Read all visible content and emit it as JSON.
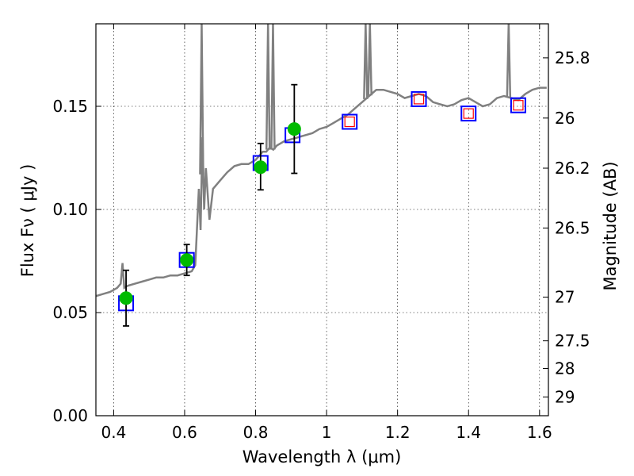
{
  "chart_data": {
    "type": "line",
    "title": "",
    "xlabel": "Wavelength  λ (μm)",
    "ylabel": "Flux  Fν  ( μJy )",
    "y2label": "Magnitude (AB)",
    "xlim": [
      0.35,
      1.625
    ],
    "ylim": [
      0,
      0.19
    ],
    "grid": true,
    "x_ticks": [
      0.4,
      0.6,
      0.8,
      1.0,
      1.2,
      1.4,
      1.6
    ],
    "x_tick_labels": [
      "0.4",
      "0.6",
      "0.8",
      "1",
      "1.2",
      "1.4",
      "1.6"
    ],
    "y_ticks": [
      0.0,
      0.05,
      0.1,
      0.15
    ],
    "y_tick_labels": [
      "0.00",
      "0.05",
      "0.10",
      "0.15"
    ],
    "y2_ticks": [
      {
        "label": "25.8",
        "flux": 0.1735
      },
      {
        "label": "26",
        "flux": 0.1443
      },
      {
        "label": "26.2",
        "flux": 0.12
      },
      {
        "label": "26.5",
        "flux": 0.091
      },
      {
        "label": "27",
        "flux": 0.0575
      },
      {
        "label": "27.5",
        "flux": 0.0363
      },
      {
        "label": "28",
        "flux": 0.0229
      },
      {
        "label": "29",
        "flux": 0.0091
      }
    ],
    "colors": {
      "spectrum": "#808080",
      "model_box": "#0000ff",
      "nir_inner_box": "#ff0000",
      "observed": "#00bb00",
      "errorbar": "#000000"
    },
    "series": [
      {
        "name": "model spectrum",
        "x": [
          0.35,
          0.37,
          0.39,
          0.4,
          0.41,
          0.42,
          0.425,
          0.43,
          0.44,
          0.46,
          0.48,
          0.5,
          0.52,
          0.54,
          0.56,
          0.58,
          0.6,
          0.62,
          0.63,
          0.64,
          0.645,
          0.65,
          0.655,
          0.66,
          0.67,
          0.68,
          0.7,
          0.72,
          0.74,
          0.76,
          0.78,
          0.79,
          0.8,
          0.81,
          0.82,
          0.83,
          0.84,
          0.85,
          0.86,
          0.87,
          0.88,
          0.9,
          0.92,
          0.94,
          0.96,
          0.98,
          1.0,
          1.02,
          1.04,
          1.06,
          1.08,
          1.1,
          1.12,
          1.14,
          1.16,
          1.18,
          1.2,
          1.22,
          1.24,
          1.26,
          1.28,
          1.3,
          1.32,
          1.34,
          1.36,
          1.38,
          1.4,
          1.42,
          1.44,
          1.46,
          1.48,
          1.5,
          1.52,
          1.54,
          1.56,
          1.58,
          1.6,
          1.62
        ],
        "y": [
          0.058,
          0.059,
          0.06,
          0.061,
          0.062,
          0.064,
          0.074,
          0.062,
          0.063,
          0.064,
          0.065,
          0.066,
          0.067,
          0.067,
          0.068,
          0.068,
          0.069,
          0.07,
          0.073,
          0.11,
          0.09,
          0.135,
          0.1,
          0.12,
          0.095,
          0.11,
          0.114,
          0.118,
          0.121,
          0.122,
          0.122,
          0.123,
          0.124,
          0.126,
          0.128,
          0.128,
          0.13,
          0.129,
          0.131,
          0.132,
          0.133,
          0.134,
          0.135,
          0.136,
          0.137,
          0.139,
          0.14,
          0.142,
          0.144,
          0.146,
          0.149,
          0.152,
          0.155,
          0.158,
          0.158,
          0.157,
          0.156,
          0.154,
          0.155,
          0.156,
          0.155,
          0.152,
          0.151,
          0.15,
          0.151,
          0.153,
          0.154,
          0.152,
          0.15,
          0.151,
          0.154,
          0.155,
          0.154,
          0.153,
          0.156,
          0.158,
          0.159,
          0.159
        ]
      },
      {
        "name": "model photometry",
        "x": [
          0.435,
          0.606,
          0.814,
          0.904,
          1.065,
          1.26,
          1.4,
          1.54
        ],
        "y": [
          0.0545,
          0.0755,
          0.1225,
          0.136,
          0.1425,
          0.1535,
          0.1465,
          0.1505
        ]
      },
      {
        "name": "observed photometry",
        "x": [
          0.435,
          0.606,
          0.814,
          0.909
        ],
        "y": [
          0.057,
          0.0755,
          0.1205,
          0.139
        ],
        "yerr_low": [
          0.0135,
          0.0075,
          0.011,
          0.0215
        ],
        "yerr_high": [
          0.0135,
          0.0075,
          0.0115,
          0.0215
        ]
      }
    ],
    "spikes": [
      {
        "x": 0.648,
        "top": 0.19
      },
      {
        "x": 0.835,
        "top": 0.19
      },
      {
        "x": 0.849,
        "top": 0.19
      },
      {
        "x": 1.11,
        "top": 0.19
      },
      {
        "x": 1.122,
        "top": 0.19
      },
      {
        "x": 1.513,
        "top": 0.19
      }
    ]
  }
}
